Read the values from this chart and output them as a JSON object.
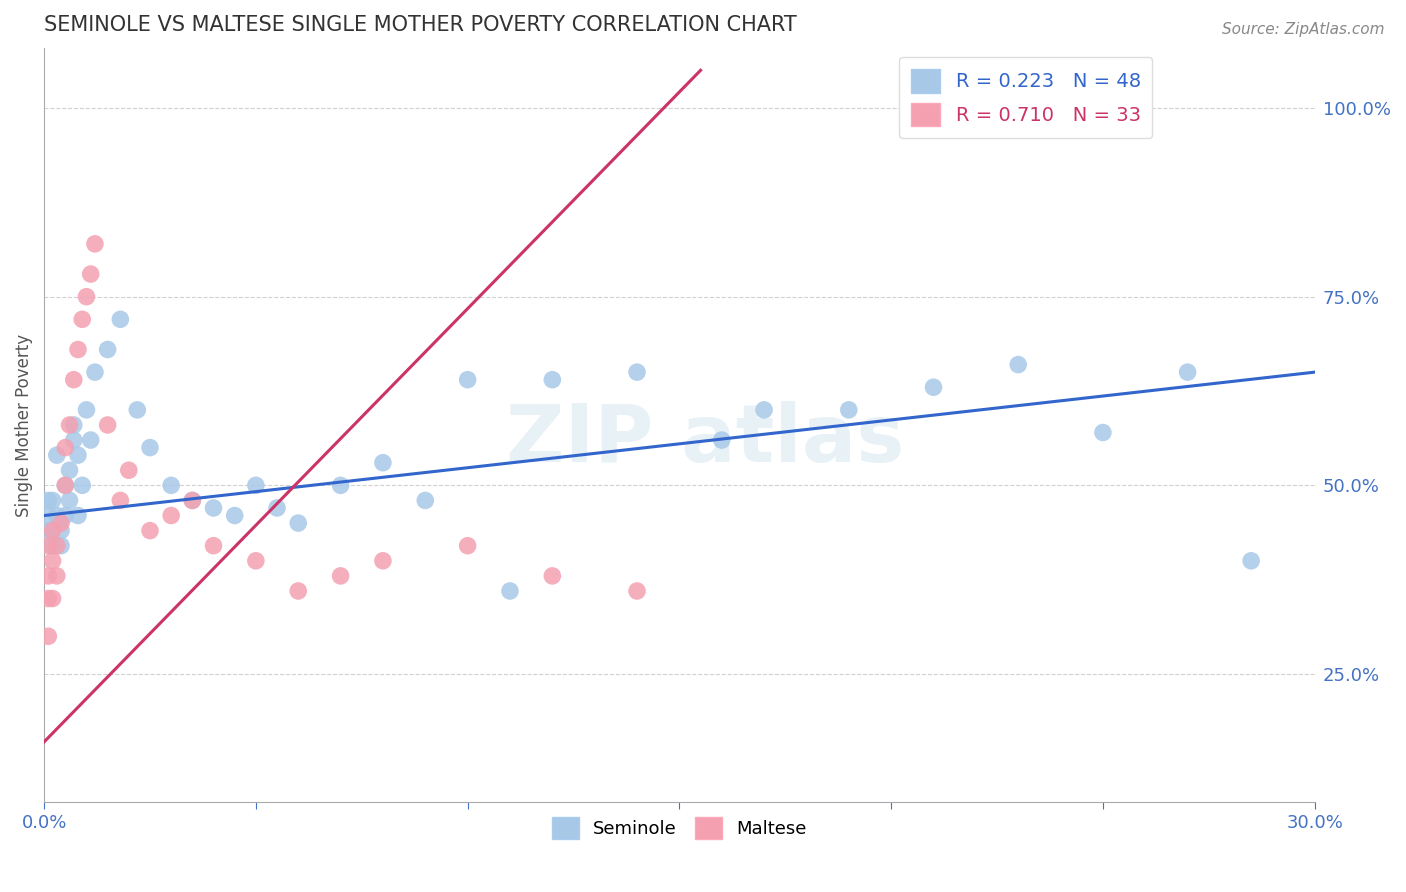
{
  "title": "SEMINOLE VS MALTESE SINGLE MOTHER POVERTY CORRELATION CHART",
  "source": "Source: ZipAtlas.com",
  "ylabel": "Single Mother Poverty",
  "seminole_R": 0.223,
  "seminole_N": 48,
  "maltese_R": 0.71,
  "maltese_N": 33,
  "seminole_color": "#a8c8e8",
  "maltese_color": "#f4a0b0",
  "seminole_trend_color": "#3366cc",
  "maltese_trend_color": "#cc3366",
  "xlim": [
    0.0,
    0.3
  ],
  "ylim": [
    0.08,
    1.08
  ],
  "yticks": [
    0.25,
    0.5,
    0.75,
    1.0
  ],
  "seminole_x": [
    0.001,
    0.001,
    0.001,
    0.002,
    0.002,
    0.002,
    0.003,
    0.003,
    0.004,
    0.004,
    0.005,
    0.005,
    0.006,
    0.006,
    0.007,
    0.007,
    0.008,
    0.008,
    0.009,
    0.01,
    0.011,
    0.012,
    0.015,
    0.018,
    0.022,
    0.025,
    0.03,
    0.035,
    0.04,
    0.045,
    0.05,
    0.055,
    0.06,
    0.07,
    0.08,
    0.09,
    0.1,
    0.11,
    0.12,
    0.14,
    0.16,
    0.17,
    0.19,
    0.21,
    0.23,
    0.25,
    0.27,
    0.285
  ],
  "seminole_y": [
    0.46,
    0.48,
    0.44,
    0.44,
    0.42,
    0.48,
    0.46,
    0.54,
    0.44,
    0.42,
    0.5,
    0.46,
    0.48,
    0.52,
    0.58,
    0.56,
    0.54,
    0.46,
    0.5,
    0.6,
    0.56,
    0.65,
    0.68,
    0.72,
    0.6,
    0.55,
    0.5,
    0.48,
    0.47,
    0.46,
    0.5,
    0.47,
    0.45,
    0.5,
    0.53,
    0.48,
    0.64,
    0.36,
    0.64,
    0.65,
    0.56,
    0.6,
    0.6,
    0.63,
    0.66,
    0.57,
    0.65,
    0.4
  ],
  "maltese_x": [
    0.001,
    0.001,
    0.001,
    0.001,
    0.002,
    0.002,
    0.002,
    0.003,
    0.003,
    0.004,
    0.005,
    0.005,
    0.006,
    0.007,
    0.008,
    0.009,
    0.01,
    0.011,
    0.012,
    0.015,
    0.018,
    0.02,
    0.025,
    0.03,
    0.035,
    0.04,
    0.05,
    0.06,
    0.07,
    0.08,
    0.1,
    0.12,
    0.14
  ],
  "maltese_y": [
    0.3,
    0.35,
    0.38,
    0.42,
    0.35,
    0.4,
    0.44,
    0.38,
    0.42,
    0.45,
    0.5,
    0.55,
    0.58,
    0.64,
    0.68,
    0.72,
    0.75,
    0.78,
    0.82,
    0.58,
    0.48,
    0.52,
    0.44,
    0.46,
    0.48,
    0.42,
    0.4,
    0.36,
    0.38,
    0.4,
    0.42,
    0.38,
    0.36
  ],
  "seminole_trend_x": [
    0.0,
    0.3
  ],
  "seminole_trend_y": [
    0.46,
    0.65
  ],
  "maltese_trend_x": [
    0.0,
    0.155
  ],
  "maltese_trend_y": [
    0.16,
    1.05
  ]
}
